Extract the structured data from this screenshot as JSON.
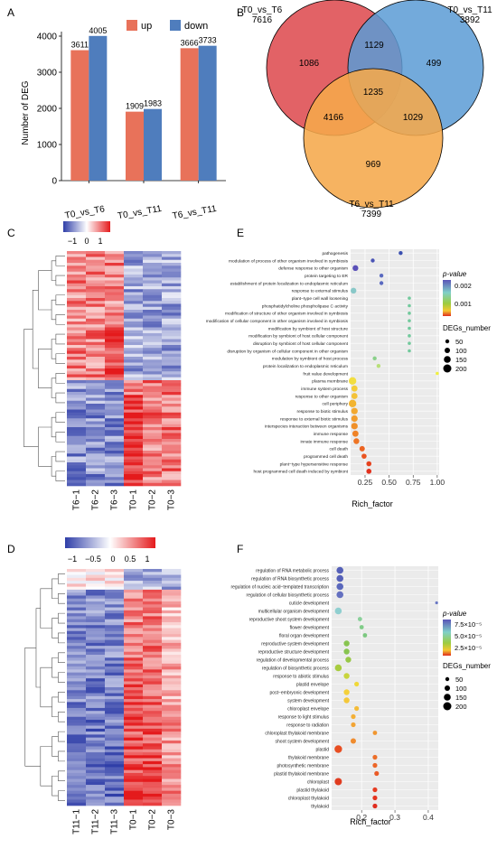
{
  "panel_letters": {
    "a": "A",
    "b": "B",
    "c": "C",
    "d": "D",
    "e": "E",
    "f": "F"
  },
  "chart_data": [
    {
      "panel": "A",
      "type": "bar",
      "ylabel": "Number of DEG",
      "ylim": [
        0,
        4000
      ],
      "yticks": [
        0,
        1000,
        2000,
        3000,
        4000
      ],
      "categories": [
        "T0_vs_T6",
        "T0_vs_T11",
        "T6_vs_T11"
      ],
      "series": [
        {
          "name": "up",
          "color": "#e8725a",
          "values": [
            3611,
            1909,
            3666
          ]
        },
        {
          "name": "down",
          "color": "#4f7dbd",
          "values": [
            4005,
            1983,
            3733
          ]
        }
      ],
      "legend": "top"
    },
    {
      "panel": "B",
      "type": "venn",
      "sets": [
        {
          "name": "T0_vs_T6",
          "total": "7616",
          "color": "#e05a5e"
        },
        {
          "name": "T0_vs_T11",
          "total": "3892",
          "color": "#5b9bd5"
        },
        {
          "name": "T6_vs_T11",
          "total": "7399",
          "color": "#f5a94b"
        }
      ],
      "regions": {
        "a_only": "1086",
        "ab": "1129",
        "b_only": "499",
        "abc": "1235",
        "ac": "4166",
        "bc": "1029",
        "c_only": "969"
      }
    },
    {
      "panel": "C",
      "type": "heatmap",
      "scale_ticks": [
        "−1",
        "0",
        "1"
      ],
      "columns": [
        "T6−1",
        "T6−2",
        "T6−3",
        "T0−1",
        "T0−2",
        "T0−3"
      ]
    },
    {
      "panel": "D",
      "type": "heatmap",
      "scale_ticks": [
        "−1",
        "−0.5",
        "0",
        "0.5",
        "1"
      ],
      "columns": [
        "T11−1",
        "T11−2",
        "T11−3",
        "T0−1",
        "T0−2",
        "T0−3"
      ]
    },
    {
      "panel": "E",
      "type": "scatter",
      "xlabel": "Rich_factor",
      "xlim": [
        0.1,
        1.02
      ],
      "xticks": [
        "0.25",
        "0.50",
        "0.75",
        "1.00"
      ],
      "xtick_values": [
        0.25,
        0.5,
        0.75,
        1.0
      ],
      "legend_color_title": "p-value",
      "legend_color_ticks": [
        "0.002",
        "0.001"
      ],
      "legend_size_title": "DEGs_number",
      "legend_size_ticks": [
        "50",
        "100",
        "150",
        "200"
      ],
      "points": [
        {
          "term": "pathogenesis",
          "x": 0.62,
          "color": "#3a4fb0",
          "size": 2.2
        },
        {
          "term": "modulation of process of other organism involved in symbiosis",
          "x": 0.33,
          "color": "#4a54b5",
          "size": 2.2
        },
        {
          "term": "defense response to other organism",
          "x": 0.15,
          "color": "#5a50b8",
          "size": 3.2
        },
        {
          "term": "protein targeting to ER",
          "x": 0.42,
          "color": "#5a6ac0",
          "size": 2.2
        },
        {
          "term": "establishment of protein localization to endoplasmic reticulum",
          "x": 0.42,
          "color": "#5a6ac0",
          "size": 2.2
        },
        {
          "term": "response to external stimulus",
          "x": 0.13,
          "color": "#88c8c8",
          "size": 3.2
        },
        {
          "term": "plant−type cell wall loosening",
          "x": 0.71,
          "color": "#72c99c",
          "size": 1.8
        },
        {
          "term": "phosphatidylcholine phospholipase C activity",
          "x": 0.71,
          "color": "#72c99c",
          "size": 1.8
        },
        {
          "term": "modification of structure of other organism involved in symbiosis",
          "x": 0.71,
          "color": "#72c99c",
          "size": 1.8
        },
        {
          "term": "modification of cellular component in other organism involved in symbiosis",
          "x": 0.71,
          "color": "#72c99c",
          "size": 1.8
        },
        {
          "term": "modification by symbiont of host structure",
          "x": 0.71,
          "color": "#72c99c",
          "size": 1.8
        },
        {
          "term": "modification by symbiont of host cellular component",
          "x": 0.71,
          "color": "#72c99c",
          "size": 1.8
        },
        {
          "term": "disruption by symbiont of host cellular component",
          "x": 0.71,
          "color": "#72c99c",
          "size": 1.8
        },
        {
          "term": "disruption by organism of cellular component in other organism",
          "x": 0.71,
          "color": "#72c99c",
          "size": 1.8
        },
        {
          "term": "modulation by symbiont of host process",
          "x": 0.35,
          "color": "#8ad08a",
          "size": 2.2
        },
        {
          "term": "protein localization to endoplasmic reticulum",
          "x": 0.39,
          "color": "#b8df78",
          "size": 2.2
        },
        {
          "term": "fruit value development",
          "x": 1.0,
          "color": "#f0f040",
          "size": 1.8
        },
        {
          "term": "plasma membrane",
          "x": 0.12,
          "color": "#f2de40",
          "size": 4.2
        },
        {
          "term": "immune system process",
          "x": 0.14,
          "color": "#f4cc38",
          "size": 3.4
        },
        {
          "term": "response to other organism",
          "x": 0.14,
          "color": "#f4c238",
          "size": 3.4
        },
        {
          "term": "cell periphery",
          "x": 0.12,
          "color": "#f2b430",
          "size": 4.2
        },
        {
          "term": "response to biotic stimulus",
          "x": 0.14,
          "color": "#f2a830",
          "size": 3.6
        },
        {
          "term": "response to external biotic stimulus",
          "x": 0.14,
          "color": "#f29c2c",
          "size": 3.6
        },
        {
          "term": "interspecies interaction between organisms",
          "x": 0.14,
          "color": "#f09028",
          "size": 3.6
        },
        {
          "term": "immune response",
          "x": 0.15,
          "color": "#ef8226",
          "size": 3.4
        },
        {
          "term": "innate immune response",
          "x": 0.16,
          "color": "#ee7424",
          "size": 3.2
        },
        {
          "term": "cell death",
          "x": 0.22,
          "color": "#ec6422",
          "size": 3.0
        },
        {
          "term": "programmed cell death",
          "x": 0.24,
          "color": "#ea5420",
          "size": 2.8
        },
        {
          "term": "plant−type hypersensitive response",
          "x": 0.29,
          "color": "#e6421e",
          "size": 2.8
        },
        {
          "term": "host programmed cell death induced by symbiont",
          "x": 0.29,
          "color": "#e2301c",
          "size": 2.8
        }
      ]
    },
    {
      "panel": "F",
      "type": "scatter",
      "xlabel": "Rich_factor",
      "xlim": [
        0.11,
        0.43
      ],
      "xticks": [
        "0.2",
        "0.3",
        "0.4"
      ],
      "xtick_values": [
        0.2,
        0.3,
        0.4
      ],
      "legend_color_title": "p-value",
      "legend_color_ticks": [
        "7.5×10⁻⁵",
        "5.0×10⁻⁵",
        "2.5×10⁻⁵"
      ],
      "legend_size_title": "DEGs_number",
      "legend_size_ticks": [
        "50",
        "100",
        "150",
        "200"
      ],
      "points": [
        {
          "term": "regulation of RNA metabolic process",
          "x": 0.135,
          "color": "#5560b8",
          "size": 3.8
        },
        {
          "term": "regulation of RNA biosynthetic process",
          "x": 0.135,
          "color": "#5560b8",
          "size": 3.8
        },
        {
          "term": "regulation of nucleic acid−templated transcription",
          "x": 0.135,
          "color": "#5a68bc",
          "size": 3.8
        },
        {
          "term": "regulation of cellular biosynthetic process",
          "x": 0.135,
          "color": "#6470c0",
          "size": 3.8
        },
        {
          "term": "cuticle development",
          "x": 0.425,
          "color": "#6a78c4",
          "size": 1.6
        },
        {
          "term": "multicellular organism development",
          "x": 0.13,
          "color": "#90cfd0",
          "size": 3.8
        },
        {
          "term": "reproductive shoot system development",
          "x": 0.195,
          "color": "#8ad09a",
          "size": 2.4
        },
        {
          "term": "flower development",
          "x": 0.2,
          "color": "#80cc88",
          "size": 2.4
        },
        {
          "term": "floral organ development",
          "x": 0.21,
          "color": "#7cc880",
          "size": 2.4
        },
        {
          "term": "reproductive system development",
          "x": 0.155,
          "color": "#88c450",
          "size": 3.2
        },
        {
          "term": "reproductive structure development",
          "x": 0.155,
          "color": "#88c450",
          "size": 3.2
        },
        {
          "term": "regulation of developmental process",
          "x": 0.16,
          "color": "#98c848",
          "size": 3.2
        },
        {
          "term": "regulation of biosynthetic process",
          "x": 0.13,
          "color": "#a8cc40",
          "size": 3.8
        },
        {
          "term": "response to abiotic stimulus",
          "x": 0.155,
          "color": "#c8d43c",
          "size": 3.2
        },
        {
          "term": "plastid envelope",
          "x": 0.185,
          "color": "#f0d838",
          "size": 2.6
        },
        {
          "term": "post−embryonic development",
          "x": 0.155,
          "color": "#f4d03a",
          "size": 3.2
        },
        {
          "term": "system development",
          "x": 0.155,
          "color": "#f4c83a",
          "size": 3.2
        },
        {
          "term": "chloroplast envelope",
          "x": 0.185,
          "color": "#f4bc38",
          "size": 2.6
        },
        {
          "term": "response to light stimulus",
          "x": 0.175,
          "color": "#f4b036",
          "size": 2.6
        },
        {
          "term": "response to radiation",
          "x": 0.175,
          "color": "#f2a434",
          "size": 2.6
        },
        {
          "term": "chloroplast thylakoid membrane",
          "x": 0.24,
          "color": "#f09630",
          "size": 2.4
        },
        {
          "term": "shoot system development",
          "x": 0.175,
          "color": "#f08c2e",
          "size": 3.0
        },
        {
          "term": "plastid",
          "x": 0.13,
          "color": "#e84e22",
          "size": 4.2
        },
        {
          "term": "thylakoid membrane",
          "x": 0.24,
          "color": "#ec6e28",
          "size": 2.6
        },
        {
          "term": "photosynthetic membrane",
          "x": 0.24,
          "color": "#ec6628",
          "size": 2.6
        },
        {
          "term": "plastid thylakoid membrane",
          "x": 0.245,
          "color": "#ea5a26",
          "size": 2.6
        },
        {
          "term": "chloroplast",
          "x": 0.13,
          "color": "#e03c20",
          "size": 4.0
        },
        {
          "term": "plastid thylakoid",
          "x": 0.24,
          "color": "#e63c22",
          "size": 2.6
        },
        {
          "term": "chloroplast thylakoid",
          "x": 0.24,
          "color": "#e43420",
          "size": 2.6
        },
        {
          "term": "thylakoid",
          "x": 0.24,
          "color": "#e02c1e",
          "size": 2.6
        }
      ]
    }
  ]
}
